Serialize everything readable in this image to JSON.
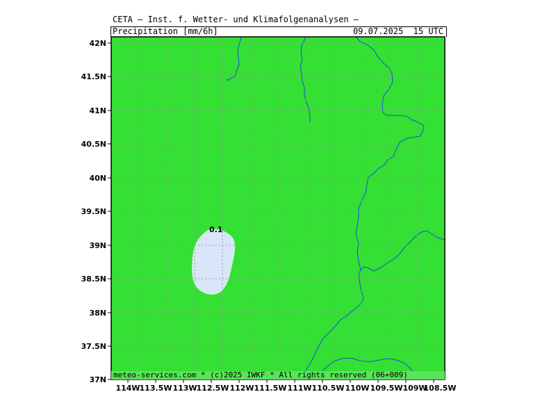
{
  "header": {
    "title": "CETA — Inst. f. Wetter- und Klimafolgenanalysen —",
    "parameter": "Precipitation [mm/6h]",
    "valid_time": "09.07.2025  15 UTC"
  },
  "footer": {
    "text": "meteo-services.com * (c)2025 IWKF * All rights reserved (06+009)"
  },
  "map": {
    "region": {
      "lon_min": -114.5,
      "lon_max": -108.5,
      "lat_min": 37,
      "lat_max": 42
    },
    "colors": {
      "background": "#33e033",
      "precip_low": "#d7e6f8",
      "rivers": "#1a4fd8",
      "grid": "#9a9a9a",
      "frame": "#000000"
    },
    "lat_labels": [
      "42N",
      "41.5N",
      "41N",
      "40.5N",
      "40N",
      "39.5N",
      "39N",
      "38.5N",
      "38N",
      "37.5N",
      "37N"
    ],
    "lon_labels": [
      "114W",
      "113.5W",
      "113W",
      "112.5W",
      "112W",
      "111.5W",
      "111W",
      "110.5W",
      "110W",
      "109.5W",
      "109W",
      "108.5W"
    ],
    "contour_label": "0.1"
  }
}
